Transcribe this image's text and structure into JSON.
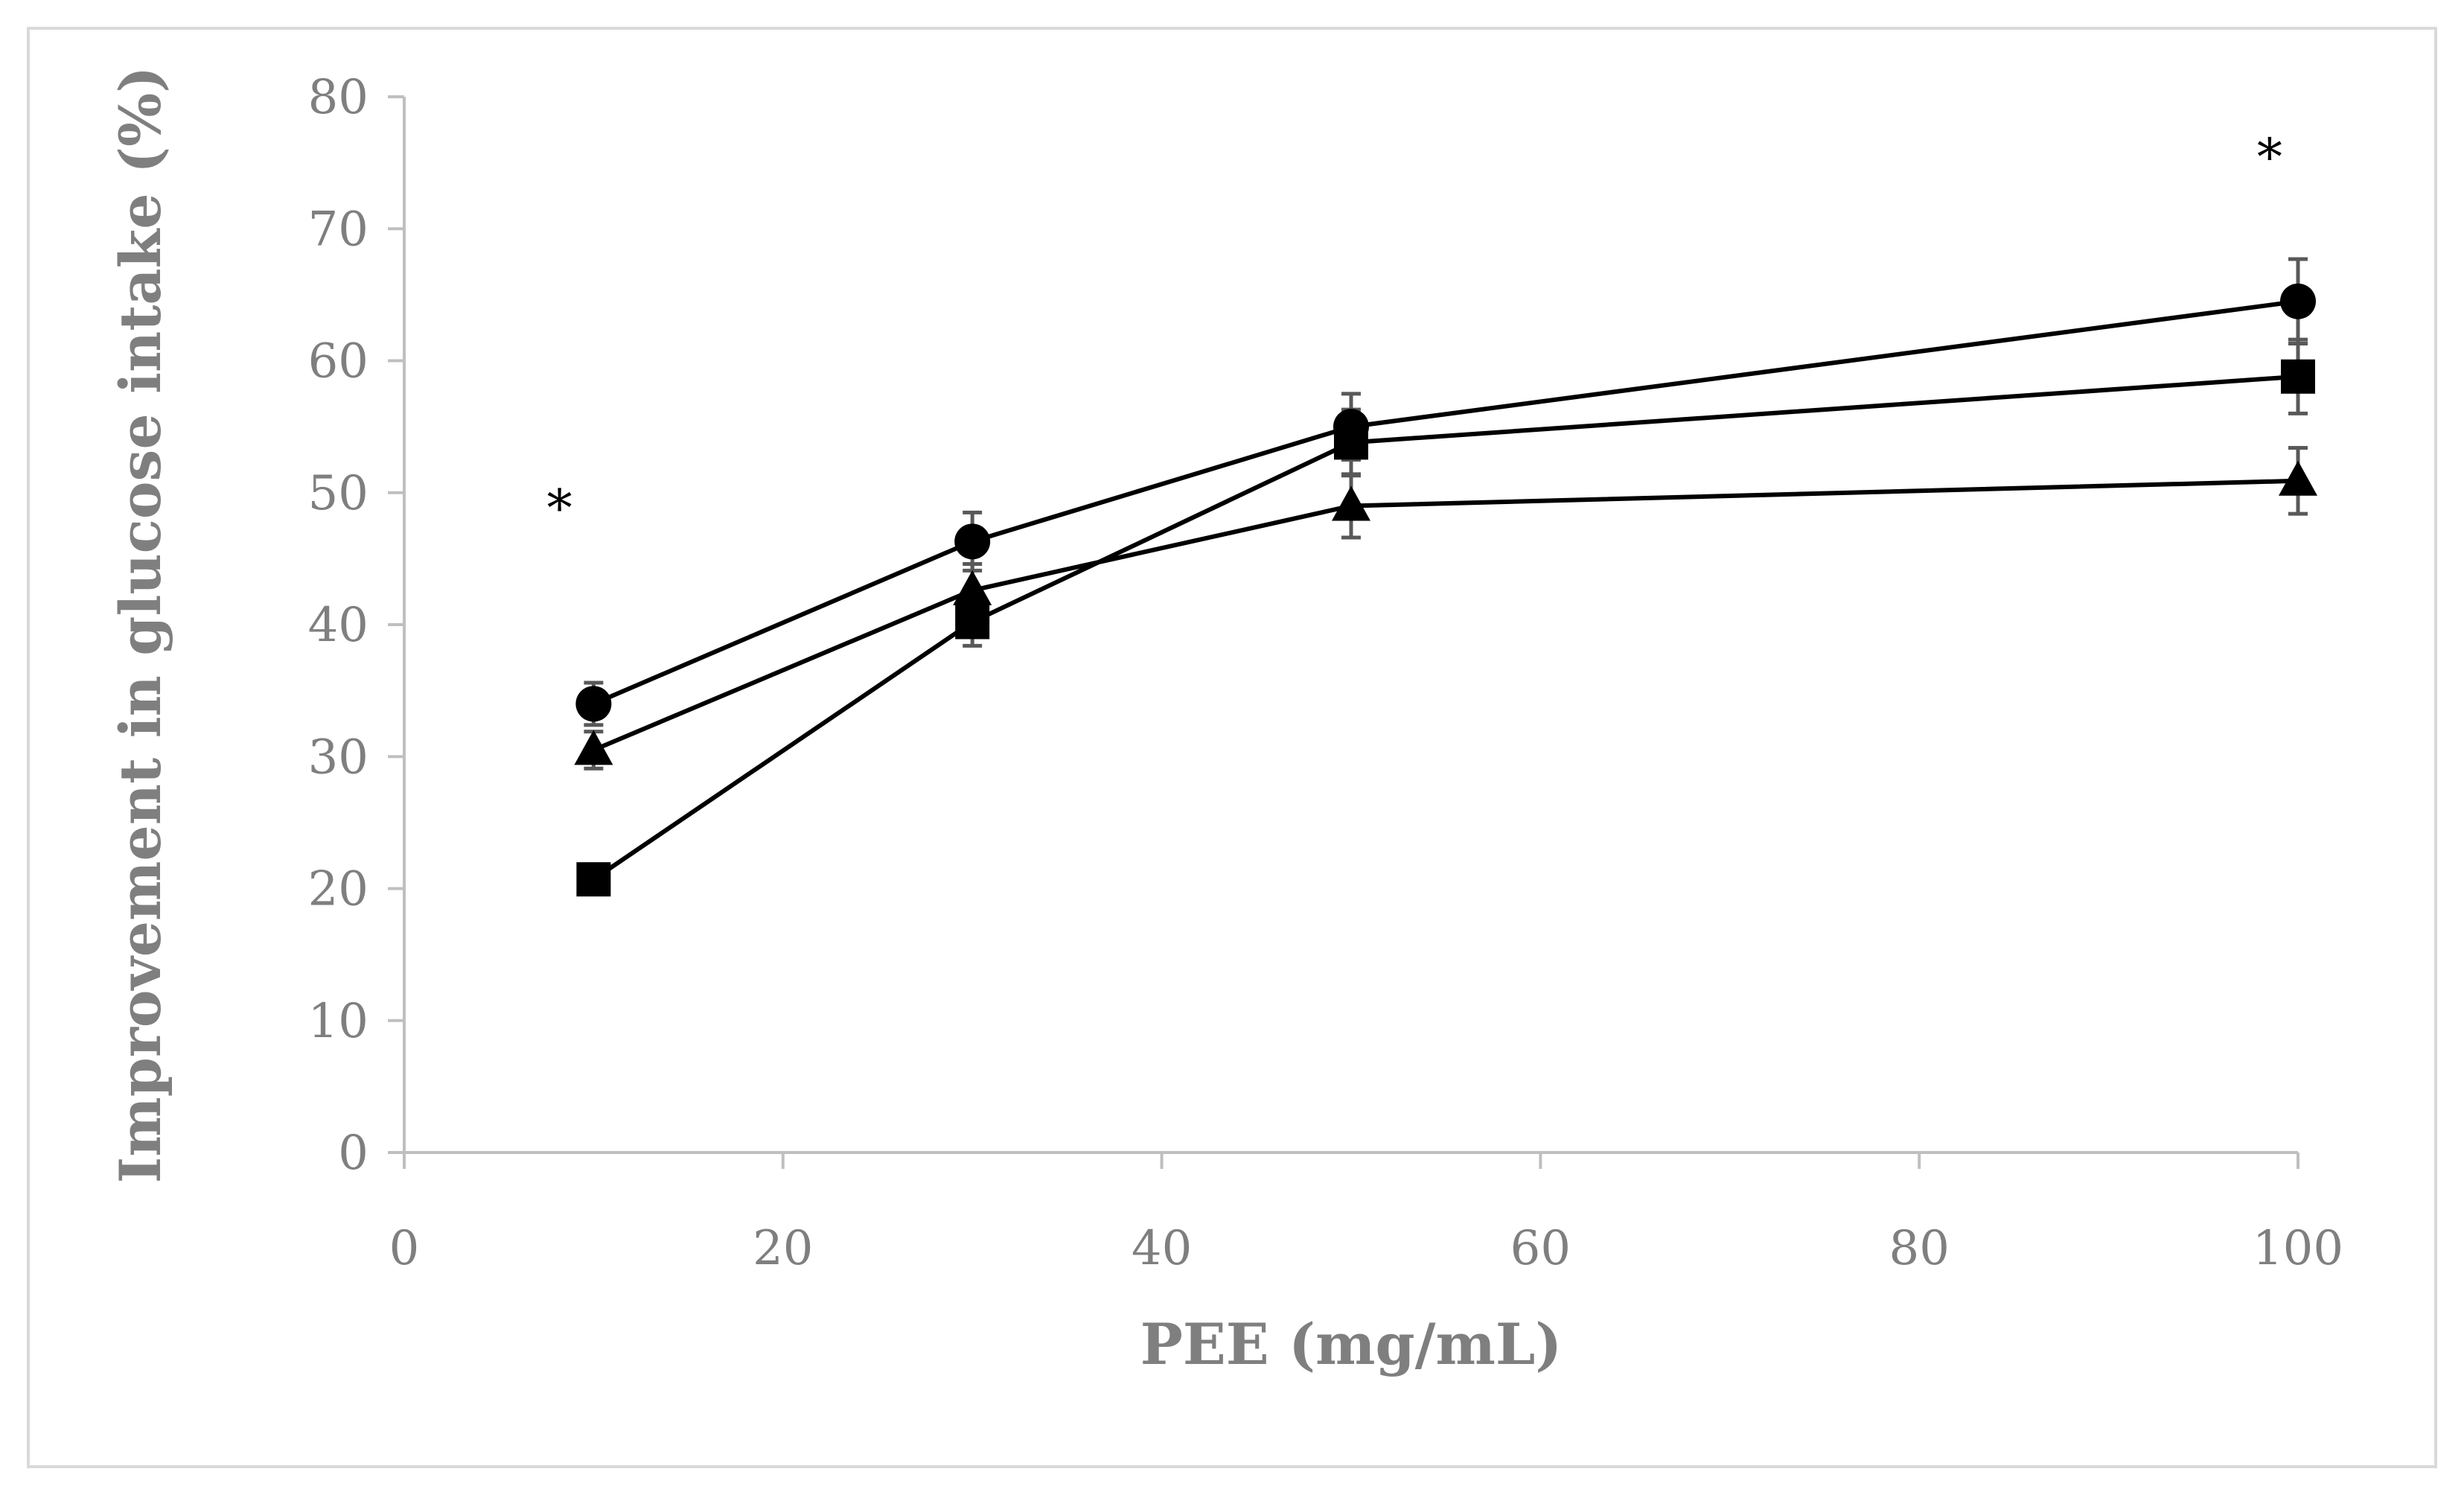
{
  "chart_data": {
    "type": "line",
    "title": "",
    "xlabel": "PEE (mg/mL)",
    "ylabel": "Improvement in glucose intake (%)",
    "xlim": [
      0,
      100
    ],
    "ylim": [
      0,
      80
    ],
    "xticks": [
      0,
      20,
      40,
      60,
      80,
      100
    ],
    "yticks": [
      0,
      10,
      20,
      30,
      40,
      50,
      60,
      70,
      80
    ],
    "grid": false,
    "legend": "none",
    "x": [
      10,
      30,
      50,
      100
    ],
    "series": [
      {
        "name": "circle",
        "marker": "circle",
        "values": [
          34.0,
          46.3,
          55.0,
          64.5
        ],
        "errors": [
          1.6,
          2.2,
          2.5,
          3.2
        ]
      },
      {
        "name": "square",
        "marker": "square",
        "values": [
          20.7,
          40.2,
          53.8,
          58.8
        ],
        "errors": [
          1.0,
          1.8,
          2.5,
          2.8
        ]
      },
      {
        "name": "triangle",
        "marker": "triangle",
        "values": [
          30.5,
          42.6,
          49.0,
          50.9
        ],
        "errors": [
          1.4,
          2.0,
          2.4,
          2.5
        ]
      }
    ],
    "annotations": [
      {
        "text": "*",
        "x": 8.2,
        "y": 49.2
      },
      {
        "text": "*",
        "x": 98.5,
        "y": 75.8
      }
    ],
    "colors": {
      "line": "#000000",
      "axis": "#bfbfbf",
      "error_bar": "#595959",
      "tick_text": "#7f7f7f"
    }
  }
}
